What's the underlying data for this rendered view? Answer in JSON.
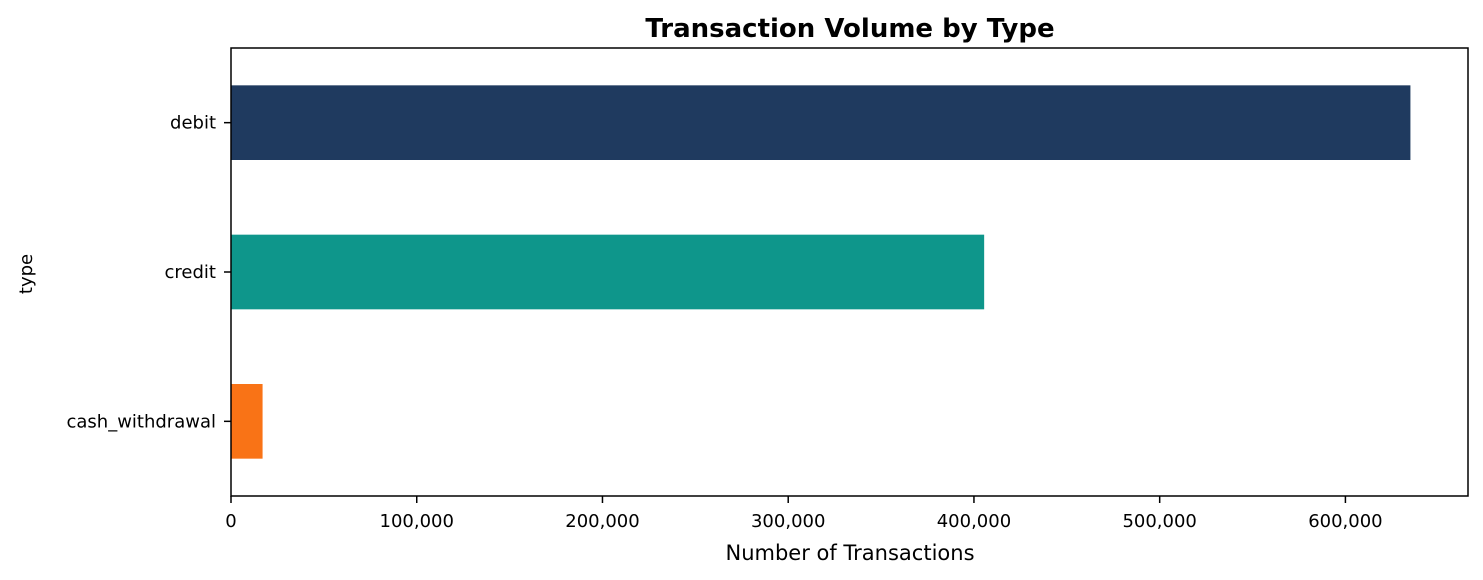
{
  "chart_data": {
    "type": "bar",
    "orientation": "horizontal",
    "title": "Transaction Volume by Type",
    "xlabel": "Number of Transactions",
    "ylabel": "type",
    "categories": [
      "debit",
      "credit",
      "cash_withdrawal"
    ],
    "values": [
      635000,
      405500,
      17000
    ],
    "colors": [
      "#1f3a5f",
      "#0e968b",
      "#f97316"
    ],
    "xlim": [
      0,
      666000
    ],
    "xticks": [
      0,
      100000,
      200000,
      300000,
      400000,
      500000,
      600000
    ],
    "xtick_labels": [
      "0",
      "100,000",
      "200,000",
      "300,000",
      "400,000",
      "500,000",
      "600,000"
    ],
    "grid": false,
    "legend": "none"
  }
}
